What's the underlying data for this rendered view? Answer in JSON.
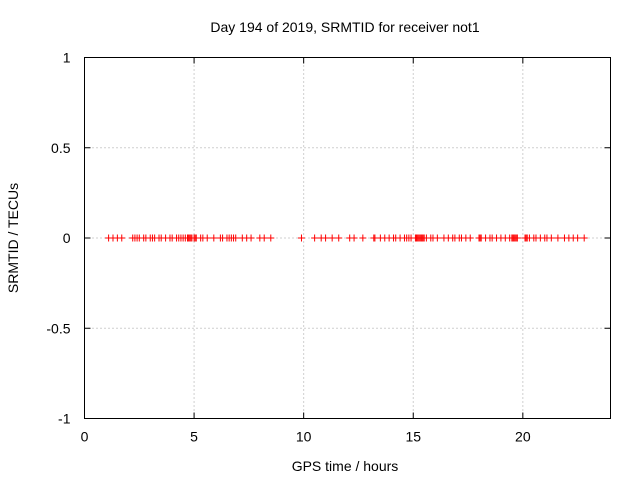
{
  "chart_data": {
    "type": "scatter",
    "title": "Day 194 of 2019, SRMTID for receiver not1",
    "xlabel": "GPS time / hours",
    "ylabel": "SRMTID / TECUs",
    "xlim": [
      0,
      24
    ],
    "ylim": [
      -1,
      1
    ],
    "xticks": [
      0,
      5,
      10,
      15,
      20
    ],
    "xtick_labels": [
      "0",
      "5",
      "10",
      "15",
      "20"
    ],
    "yticks": [
      -1,
      -0.5,
      0,
      0.5,
      1
    ],
    "ytick_labels": [
      "-1",
      "-0.5",
      "0",
      "0.5",
      "1"
    ],
    "grid": true,
    "marker": "plus",
    "color": "#ff0000",
    "series": [
      {
        "name": "SRMTID",
        "x": [
          1.1,
          1.3,
          1.5,
          1.7,
          2.2,
          2.3,
          2.4,
          2.5,
          2.7,
          2.8,
          3.0,
          3.1,
          3.2,
          3.4,
          3.5,
          3.7,
          3.9,
          4.0,
          4.2,
          4.3,
          4.4,
          4.5,
          4.6,
          4.7,
          4.75,
          4.8,
          4.85,
          4.9,
          5.0,
          5.05,
          5.1,
          5.3,
          5.4,
          5.6,
          5.9,
          6.2,
          6.3,
          6.5,
          6.6,
          6.7,
          6.8,
          6.9,
          7.2,
          7.4,
          7.6,
          8.0,
          8.2,
          8.5,
          9.9,
          10.5,
          10.8,
          11.0,
          11.3,
          11.6,
          12.1,
          12.3,
          12.7,
          13.2,
          13.25,
          13.5,
          13.7,
          13.9,
          14.1,
          14.2,
          14.4,
          14.6,
          14.7,
          14.8,
          14.9,
          15.1,
          15.15,
          15.2,
          15.25,
          15.3,
          15.35,
          15.4,
          15.45,
          15.5,
          15.6,
          15.8,
          15.9,
          16.1,
          16.4,
          16.6,
          16.8,
          16.9,
          17.1,
          17.2,
          17.4,
          17.6,
          18.0,
          18.05,
          18.1,
          18.3,
          18.5,
          18.6,
          18.8,
          19.0,
          19.2,
          19.4,
          19.5,
          19.55,
          19.6,
          19.65,
          19.7,
          19.75,
          20.1,
          20.15,
          20.2,
          20.3,
          20.5,
          20.6,
          20.8,
          21.0,
          21.1,
          21.3,
          21.6,
          21.9,
          22.1,
          22.3,
          22.5,
          22.8
        ],
        "y": [
          0,
          0,
          0,
          0,
          0,
          0,
          0,
          0,
          0,
          0,
          0,
          0,
          0,
          0,
          0,
          0,
          0,
          0,
          0,
          0,
          0,
          0,
          0,
          0,
          0,
          0,
          0,
          0,
          0,
          0,
          0,
          0,
          0,
          0,
          0,
          0,
          0,
          0,
          0,
          0,
          0,
          0,
          0,
          0,
          0,
          0,
          0,
          0,
          0,
          0,
          0,
          0,
          0,
          0,
          0,
          0,
          0,
          0,
          0,
          0,
          0,
          0,
          0,
          0,
          0,
          0,
          0,
          0,
          0,
          0,
          0,
          0,
          0,
          0,
          0,
          0,
          0,
          0,
          0,
          0,
          0,
          0,
          0,
          0,
          0,
          0,
          0,
          0,
          0,
          0,
          0,
          0,
          0,
          0,
          0,
          0,
          0,
          0,
          0,
          0,
          0,
          0,
          0,
          0,
          0,
          0,
          0,
          0,
          0,
          0,
          0,
          0,
          0,
          0,
          0,
          0,
          0,
          0,
          0,
          0,
          0,
          0
        ]
      }
    ]
  }
}
